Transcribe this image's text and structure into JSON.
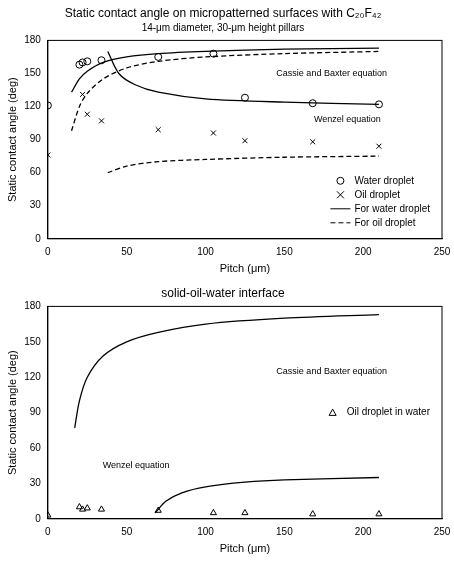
{
  "chart_data": [
    {
      "type": "scatter",
      "title": "Static contact angle on micropatterned surfaces with C₂₀F₄₂",
      "subtitle": "14-μm diameter, 30-μm height pillars",
      "x_label": "Pitch (μm)",
      "y_label": "Static contact angle (deg)",
      "xlim": [
        0,
        250
      ],
      "xticks": [
        0,
        50,
        100,
        150,
        200,
        250
      ],
      "ylim": [
        0,
        180
      ],
      "yticks": [
        0,
        30,
        60,
        90,
        120,
        150,
        180
      ],
      "grid": false,
      "legend": "lower right",
      "annotations": [
        {
          "text": "Cassie and Baxter equation",
          "x": 180,
          "y": 150
        },
        {
          "text": "Wenzel equation",
          "x": 190,
          "y": 108
        }
      ],
      "series": [
        {
          "name": "Water droplet",
          "color": "#000000",
          "marker": "circle",
          "line_style": "none",
          "x": [
            0,
            20,
            22,
            25,
            34,
            70,
            105,
            125,
            168,
            210
          ],
          "values": [
            121,
            158,
            160,
            161,
            162,
            165,
            168,
            128,
            123,
            122
          ]
        },
        {
          "name": "Oil droplet",
          "color": "#000000",
          "marker": "x",
          "line_style": "none",
          "x": [
            0,
            22,
            25,
            34,
            70,
            105,
            125,
            168,
            210
          ],
          "values": [
            76,
            131,
            113,
            107,
            99,
            96,
            89,
            88,
            84
          ]
        },
        {
          "name": "For water droplet",
          "color": "#000000",
          "marker": "none",
          "line_style": "solid",
          "x": [
            15,
            20,
            25,
            35,
            50,
            70,
            100,
            150,
            210,
            null,
            38,
            45,
            55,
            70,
            100,
            150,
            210
          ],
          "values": [
            133,
            145,
            152,
            160,
            165,
            168,
            170,
            172,
            173,
            null,
            170,
            150,
            140,
            133,
            127,
            124,
            122
          ]
        },
        {
          "name": "For oil droplet",
          "color": "#000000",
          "marker": "none",
          "line_style": "dashed",
          "x": [
            15,
            20,
            25,
            35,
            50,
            70,
            100,
            150,
            210,
            null,
            38,
            50,
            70,
            100,
            150,
            210
          ],
          "values": [
            98,
            120,
            132,
            145,
            155,
            161,
            165,
            168,
            170,
            null,
            60,
            66,
            70,
            72,
            74,
            75
          ]
        }
      ]
    },
    {
      "type": "scatter",
      "title": "solid-oil-water interface",
      "y_label": "Static contact angle (deg)",
      "x_label": "Pitch (μm)",
      "xlim": [
        0,
        250
      ],
      "xticks": [
        0,
        50,
        100,
        150,
        200,
        250
      ],
      "ylim": [
        0,
        180
      ],
      "yticks": [
        0,
        30,
        60,
        90,
        120,
        150,
        180
      ],
      "grid": false,
      "legend": "center right",
      "annotations": [
        {
          "text": "Cassie and Baxter equation",
          "x": 180,
          "y": 125
        },
        {
          "text": "Wenzel equation",
          "x": 56,
          "y": 45
        }
      ],
      "series": [
        {
          "name": "Oil droplet in water",
          "color": "#000000",
          "marker": "triangle",
          "line_style": "none",
          "x": [
            0,
            20,
            22,
            25,
            34,
            70,
            105,
            125,
            168,
            210
          ],
          "values": [
            3,
            10,
            8,
            9,
            8,
            7,
            5,
            5,
            4,
            4
          ]
        },
        {
          "color": "#000000",
          "marker": "none",
          "line_style": "solid",
          "x": [
            17,
            20,
            25,
            35,
            50,
            70,
            100,
            150,
            210,
            null,
            68,
            75,
            85,
            100,
            125,
            150,
            210
          ],
          "values": [
            77,
            100,
            120,
            138,
            150,
            158,
            165,
            170,
            173,
            null,
            5,
            15,
            22,
            27,
            31,
            33,
            35
          ]
        }
      ]
    }
  ]
}
